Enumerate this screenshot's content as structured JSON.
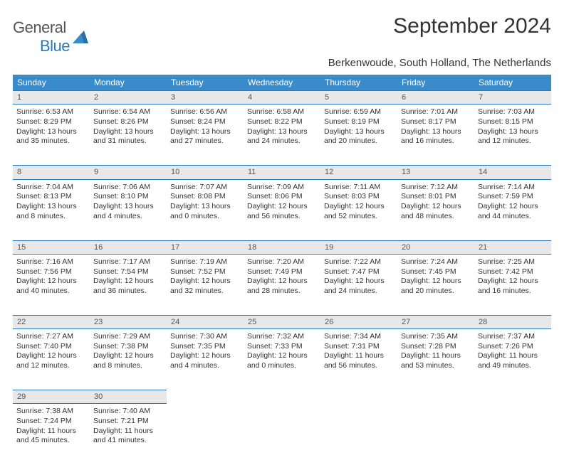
{
  "logo": {
    "general": "General",
    "blue": "Blue"
  },
  "title": "September 2024",
  "subtitle": "Berkenwoude, South Holland, The Netherlands",
  "colors": {
    "header_bg": "#3a8bc9",
    "header_text": "#ffffff",
    "divider": "#2a7ab9",
    "daynum_bg": "#e8e8e8",
    "text": "#333333",
    "logo_gray": "#555555",
    "logo_blue": "#2a7ab9",
    "background": "#ffffff"
  },
  "weekdays": [
    "Sunday",
    "Monday",
    "Tuesday",
    "Wednesday",
    "Thursday",
    "Friday",
    "Saturday"
  ],
  "weeks": [
    [
      {
        "n": "1",
        "sunrise": "6:53 AM",
        "sunset": "8:29 PM",
        "dh": "13",
        "dm": "35"
      },
      {
        "n": "2",
        "sunrise": "6:54 AM",
        "sunset": "8:26 PM",
        "dh": "13",
        "dm": "31"
      },
      {
        "n": "3",
        "sunrise": "6:56 AM",
        "sunset": "8:24 PM",
        "dh": "13",
        "dm": "27"
      },
      {
        "n": "4",
        "sunrise": "6:58 AM",
        "sunset": "8:22 PM",
        "dh": "13",
        "dm": "24"
      },
      {
        "n": "5",
        "sunrise": "6:59 AM",
        "sunset": "8:19 PM",
        "dh": "13",
        "dm": "20"
      },
      {
        "n": "6",
        "sunrise": "7:01 AM",
        "sunset": "8:17 PM",
        "dh": "13",
        "dm": "16"
      },
      {
        "n": "7",
        "sunrise": "7:03 AM",
        "sunset": "8:15 PM",
        "dh": "13",
        "dm": "12"
      }
    ],
    [
      {
        "n": "8",
        "sunrise": "7:04 AM",
        "sunset": "8:13 PM",
        "dh": "13",
        "dm": "8"
      },
      {
        "n": "9",
        "sunrise": "7:06 AM",
        "sunset": "8:10 PM",
        "dh": "13",
        "dm": "4"
      },
      {
        "n": "10",
        "sunrise": "7:07 AM",
        "sunset": "8:08 PM",
        "dh": "13",
        "dm": "0"
      },
      {
        "n": "11",
        "sunrise": "7:09 AM",
        "sunset": "8:06 PM",
        "dh": "12",
        "dm": "56"
      },
      {
        "n": "12",
        "sunrise": "7:11 AM",
        "sunset": "8:03 PM",
        "dh": "12",
        "dm": "52"
      },
      {
        "n": "13",
        "sunrise": "7:12 AM",
        "sunset": "8:01 PM",
        "dh": "12",
        "dm": "48"
      },
      {
        "n": "14",
        "sunrise": "7:14 AM",
        "sunset": "7:59 PM",
        "dh": "12",
        "dm": "44"
      }
    ],
    [
      {
        "n": "15",
        "sunrise": "7:16 AM",
        "sunset": "7:56 PM",
        "dh": "12",
        "dm": "40"
      },
      {
        "n": "16",
        "sunrise": "7:17 AM",
        "sunset": "7:54 PM",
        "dh": "12",
        "dm": "36"
      },
      {
        "n": "17",
        "sunrise": "7:19 AM",
        "sunset": "7:52 PM",
        "dh": "12",
        "dm": "32"
      },
      {
        "n": "18",
        "sunrise": "7:20 AM",
        "sunset": "7:49 PM",
        "dh": "12",
        "dm": "28"
      },
      {
        "n": "19",
        "sunrise": "7:22 AM",
        "sunset": "7:47 PM",
        "dh": "12",
        "dm": "24"
      },
      {
        "n": "20",
        "sunrise": "7:24 AM",
        "sunset": "7:45 PM",
        "dh": "12",
        "dm": "20"
      },
      {
        "n": "21",
        "sunrise": "7:25 AM",
        "sunset": "7:42 PM",
        "dh": "12",
        "dm": "16"
      }
    ],
    [
      {
        "n": "22",
        "sunrise": "7:27 AM",
        "sunset": "7:40 PM",
        "dh": "12",
        "dm": "12"
      },
      {
        "n": "23",
        "sunrise": "7:29 AM",
        "sunset": "7:38 PM",
        "dh": "12",
        "dm": "8"
      },
      {
        "n": "24",
        "sunrise": "7:30 AM",
        "sunset": "7:35 PM",
        "dh": "12",
        "dm": "4"
      },
      {
        "n": "25",
        "sunrise": "7:32 AM",
        "sunset": "7:33 PM",
        "dh": "12",
        "dm": "0"
      },
      {
        "n": "26",
        "sunrise": "7:34 AM",
        "sunset": "7:31 PM",
        "dh": "11",
        "dm": "56"
      },
      {
        "n": "27",
        "sunrise": "7:35 AM",
        "sunset": "7:28 PM",
        "dh": "11",
        "dm": "53"
      },
      {
        "n": "28",
        "sunrise": "7:37 AM",
        "sunset": "7:26 PM",
        "dh": "11",
        "dm": "49"
      }
    ],
    [
      {
        "n": "29",
        "sunrise": "7:38 AM",
        "sunset": "7:24 PM",
        "dh": "11",
        "dm": "45"
      },
      {
        "n": "30",
        "sunrise": "7:40 AM",
        "sunset": "7:21 PM",
        "dh": "11",
        "dm": "41"
      },
      null,
      null,
      null,
      null,
      null
    ]
  ]
}
